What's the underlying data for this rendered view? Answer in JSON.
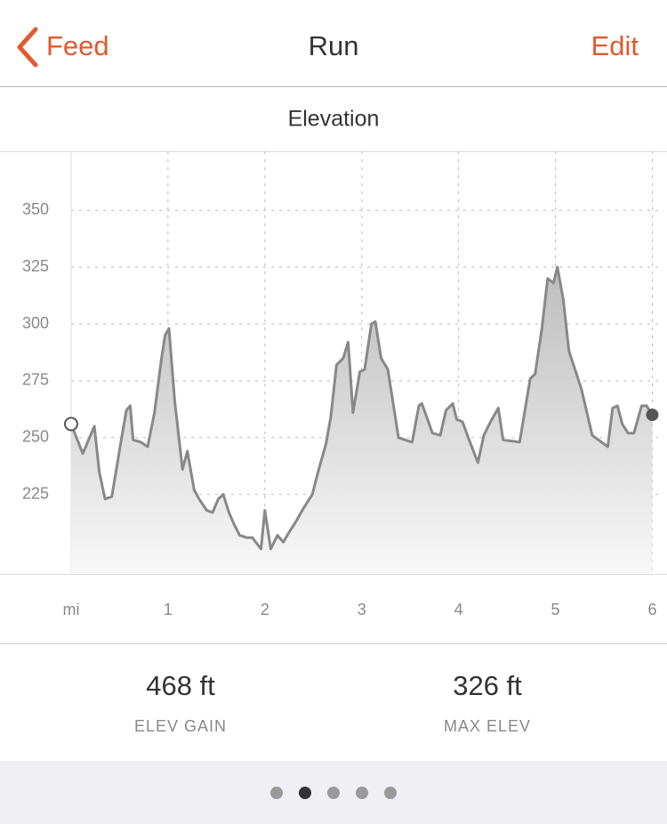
{
  "nav": {
    "back": "Feed",
    "title": "Run",
    "action": "Edit"
  },
  "chart_data": {
    "type": "area",
    "title": "Elevation",
    "color": "#888888",
    "grid": true,
    "x": [
      0,
      0.12,
      0.24,
      0.29,
      0.35,
      0.42,
      0.51,
      0.57,
      0.61,
      0.64,
      0.72,
      0.79,
      0.86,
      0.93,
      0.97,
      1.01,
      1.07,
      1.15,
      1.2,
      1.27,
      1.32,
      1.4,
      1.46,
      1.52,
      1.57,
      1.63,
      1.68,
      1.74,
      1.81,
      1.87,
      1.96,
      2.0,
      2.06,
      2.13,
      2.19,
      2.26,
      2.32,
      2.4,
      2.49,
      2.55,
      2.63,
      2.68,
      2.74,
      2.81,
      2.86,
      2.91,
      2.98,
      3.03,
      3.1,
      3.14,
      3.2,
      3.27,
      3.38,
      3.52,
      3.59,
      3.62,
      3.68,
      3.73,
      3.81,
      3.87,
      3.94,
      3.98,
      4.04,
      4.1,
      4.2,
      4.26,
      4.33,
      4.41,
      4.46,
      4.63,
      4.74,
      4.79,
      4.86,
      4.92,
      4.98,
      5.02,
      5.08,
      5.14,
      5.21,
      5.27,
      5.38,
      5.54,
      5.59,
      5.64,
      5.69,
      5.75,
      5.81,
      5.89,
      5.94,
      6.0
    ],
    "values": [
      256,
      243,
      255,
      235,
      223,
      224,
      247,
      262,
      264,
      249,
      248,
      246,
      261,
      284,
      295,
      298,
      266,
      236,
      244,
      227,
      223,
      218,
      217,
      223,
      225,
      217,
      212,
      207,
      206,
      206,
      201,
      218,
      201,
      207,
      204,
      209,
      213,
      219,
      225,
      235,
      247,
      259,
      282,
      285,
      292,
      261,
      279,
      280,
      300,
      301,
      285,
      280,
      250,
      248,
      264,
      265,
      258,
      252,
      251,
      262,
      265,
      258,
      257,
      250,
      239,
      251,
      257,
      263,
      249,
      248,
      276,
      278,
      298,
      320,
      318,
      325,
      311,
      288,
      279,
      271,
      251,
      246,
      263,
      264,
      256,
      252,
      252,
      264,
      264,
      260
    ],
    "xlim": [
      0,
      6.06
    ],
    "xticks": [
      {
        "value": 0,
        "label": "mi"
      },
      1,
      2,
      3,
      4,
      5,
      6
    ],
    "ylim": [
      190,
      376
    ],
    "yticks": [
      225,
      250,
      275,
      300,
      325,
      350
    ]
  },
  "stats": [
    {
      "value": "468 ft",
      "label": "ELEV GAIN"
    },
    {
      "value": "326 ft",
      "label": "MAX ELEV"
    }
  ],
  "pager": {
    "count": 5,
    "active": 1
  }
}
